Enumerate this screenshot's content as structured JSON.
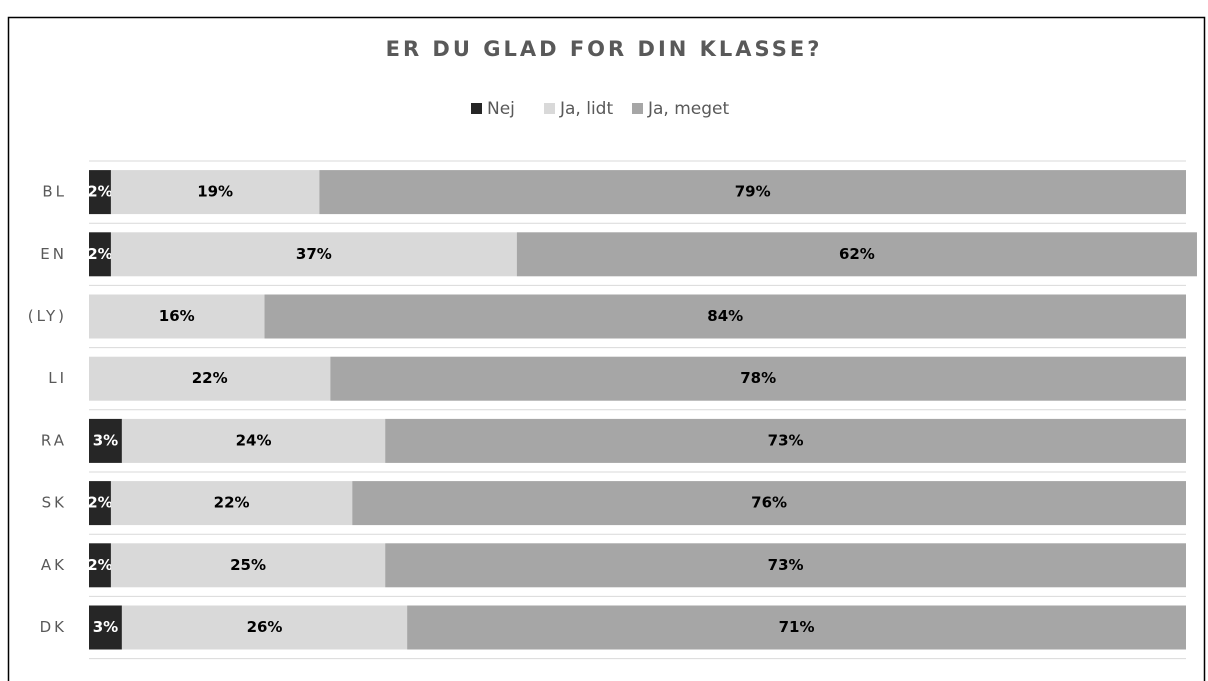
{
  "chart_data": {
    "type": "stacked-bar-horizontal",
    "title": "ER DU GLAD FOR DIN KLASSE?",
    "categories": [
      "BL",
      "EN",
      "(LY)",
      "LI",
      "RA",
      "SK",
      "AK",
      "DK"
    ],
    "xlim": [
      0,
      100
    ],
    "series": [
      {
        "name": "Nej",
        "color": "#262626",
        "label_color": "#ffffff",
        "values": [
          2,
          2,
          0,
          0,
          3,
          2,
          2,
          3
        ],
        "value_labels": [
          "2%",
          "2%",
          "%",
          "%",
          "3%",
          "2%",
          "2%",
          "3%"
        ]
      },
      {
        "name": "Ja, lidt",
        "color": "#d9d9d9",
        "label_color": "#000000",
        "values": [
          19,
          37,
          16,
          22,
          24,
          22,
          25,
          26
        ],
        "value_labels": [
          "19%",
          "37%",
          "16%",
          "22%",
          "24%",
          "22%",
          "25%",
          "26%"
        ]
      },
      {
        "name": "Ja, meget",
        "color": "#a6a6a6",
        "label_color": "#000000",
        "values": [
          79,
          62,
          84,
          78,
          73,
          76,
          73,
          71
        ],
        "value_labels": [
          "79%",
          "62%",
          "84%",
          "78%",
          "73%",
          "76%",
          "73%",
          "71%"
        ]
      }
    ]
  }
}
